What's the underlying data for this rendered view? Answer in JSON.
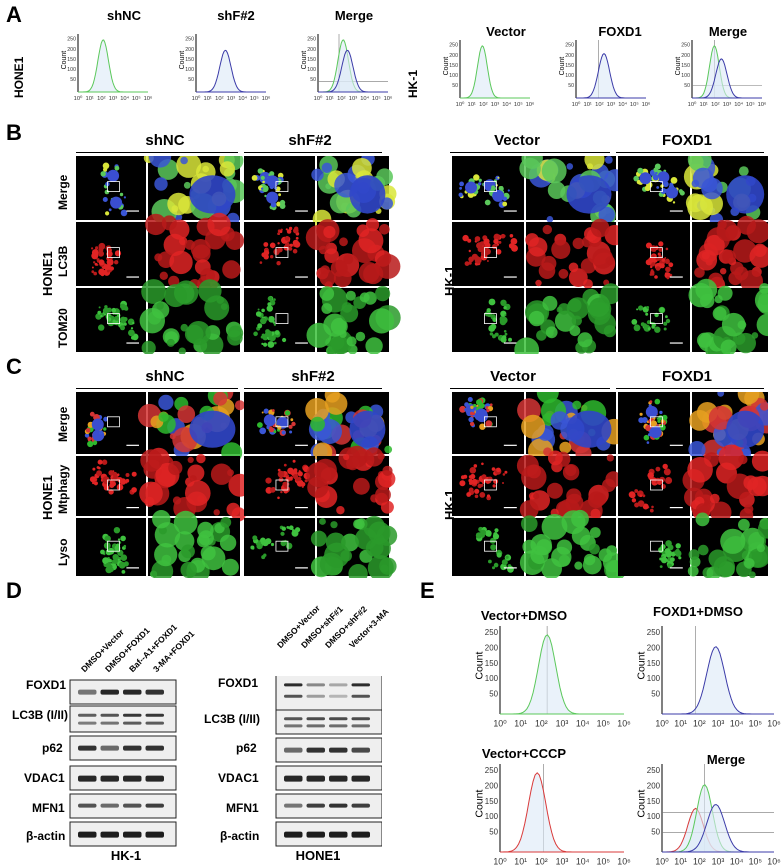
{
  "panels": {
    "A": "A",
    "B": "B",
    "C": "C",
    "D": "D",
    "E": "E"
  },
  "panelA": {
    "row_left": "HONE1",
    "row_right": "HK-1",
    "titles": [
      "shNC",
      "shF#2",
      "Merge",
      "Vector",
      "FOXD1",
      "Merge"
    ],
    "ylabel": "Count",
    "yticks": [
      "250",
      "200",
      "150",
      "100",
      "50"
    ],
    "xticks": [
      "10⁰",
      "10¹",
      "10²",
      "10³",
      "10⁴",
      "10⁵",
      "10⁶"
    ]
  },
  "panelB": {
    "group_titles": [
      "shNC",
      "shF#2",
      "Vector",
      "FOXD1"
    ],
    "cell_left": "HONE1",
    "cell_right": "HK-1",
    "rows": [
      "Merge",
      "LC3B",
      "TOM20"
    ]
  },
  "panelC": {
    "group_titles": [
      "shNC",
      "shF#2",
      "Vector",
      "FOXD1"
    ],
    "cell_left": "HONE1",
    "cell_right": "HK-1",
    "rows": [
      "Merge",
      "Mtphagy",
      "Lyso"
    ]
  },
  "panelD": {
    "left_columns": [
      "DMSO+Vector",
      "DMSO+FOXD1",
      "Baf--A1+FOXD1",
      "3-MA+FOXD1"
    ],
    "right_columns": [
      "DMSO+Vector",
      "DMSO+shF#1",
      "DMSO+shF#2",
      "Vector+3-MA"
    ],
    "proteins": [
      "FOXD1",
      "LC3B (I/II)",
      "p62",
      "VDAC1",
      "MFN1",
      "β-actin"
    ],
    "left_cell": "HK-1",
    "right_cell": "HONE1"
  },
  "panelE": {
    "titles": [
      "Vector+DMSO",
      "FOXD1+DMSO",
      "Vector+CCCP",
      "Merge"
    ],
    "ylabel": "Count",
    "yticks": [
      "250",
      "200",
      "150",
      "100",
      "50"
    ],
    "xticks": [
      "10⁰",
      "10¹",
      "10²",
      "10³",
      "10⁴",
      "10⁵",
      "10⁶"
    ]
  },
  "colors": {
    "green": "#5bc85b",
    "blue": "#3b3ba8",
    "red": "#d93a3a"
  }
}
